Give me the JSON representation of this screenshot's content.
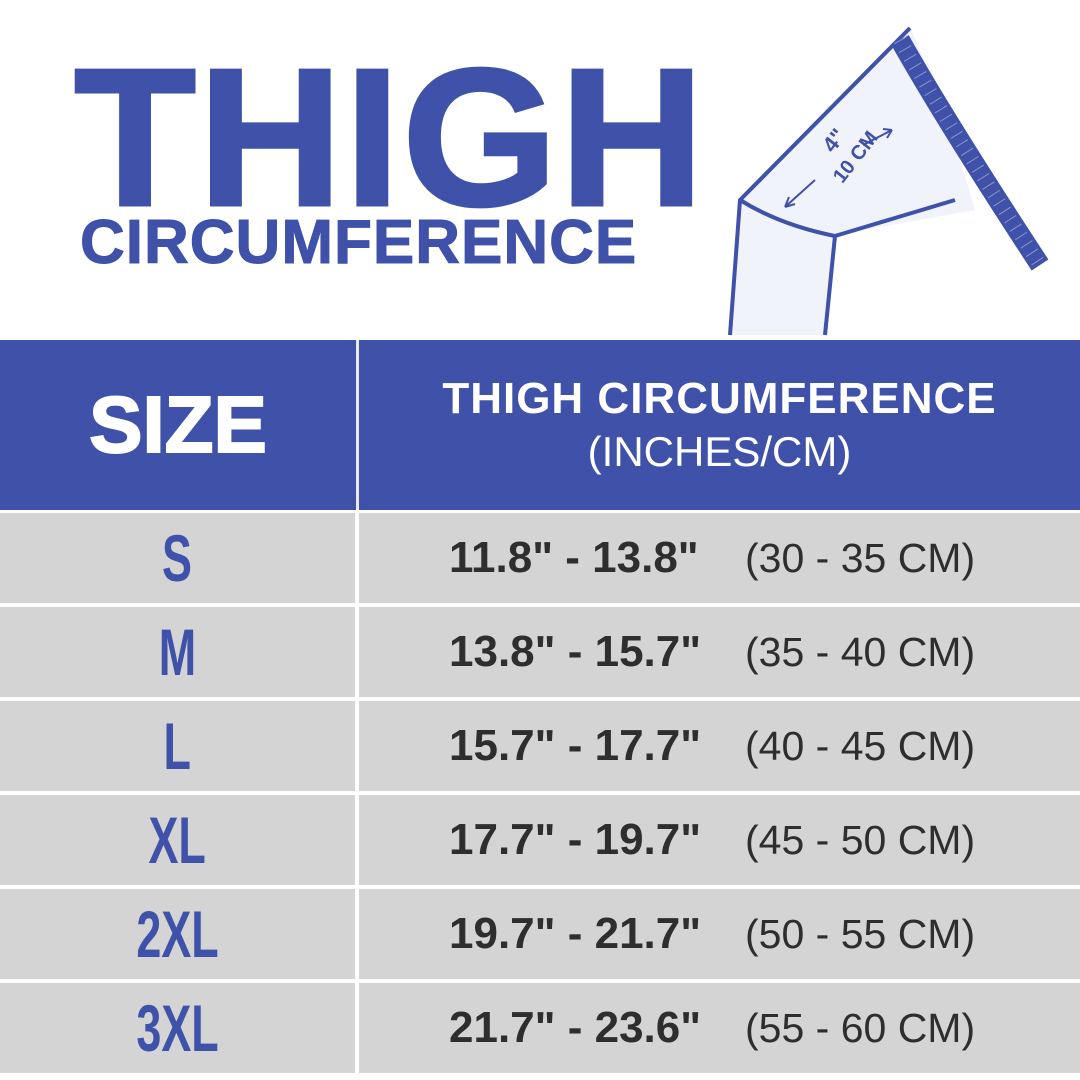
{
  "title": {
    "main": "THIGH",
    "sub": "CIRCUMFERENCE"
  },
  "illustration": {
    "width_inches": "4\"",
    "width_cm": "10 CM"
  },
  "table": {
    "header": {
      "size": "SIZE",
      "measure": "THIGH CIRCUMFERENCE",
      "units": "(INCHES/CM)"
    },
    "rows": [
      {
        "size": "S",
        "inches": "11.8\" - 13.8\"",
        "cm": "(30 - 35 CM)"
      },
      {
        "size": "M",
        "inches": "13.8\" - 15.7\"",
        "cm": "(35 - 40 CM)"
      },
      {
        "size": "L",
        "inches": "15.7\" - 17.7\"",
        "cm": "(40 - 45 CM)"
      },
      {
        "size": "XL",
        "inches": "17.7\" - 19.7\"",
        "cm": "(45 - 50 CM)"
      },
      {
        "size": "2XL",
        "inches": "19.7\" - 21.7\"",
        "cm": "(50 - 55 CM)"
      },
      {
        "size": "3XL",
        "inches": "21.7\" - 23.6\"",
        "cm": "(55 - 60 CM)"
      }
    ]
  },
  "colors": {
    "brand_blue": "#3f51a8",
    "row_gray": "#d4d4d4",
    "text_dark": "#2e2e2e"
  }
}
